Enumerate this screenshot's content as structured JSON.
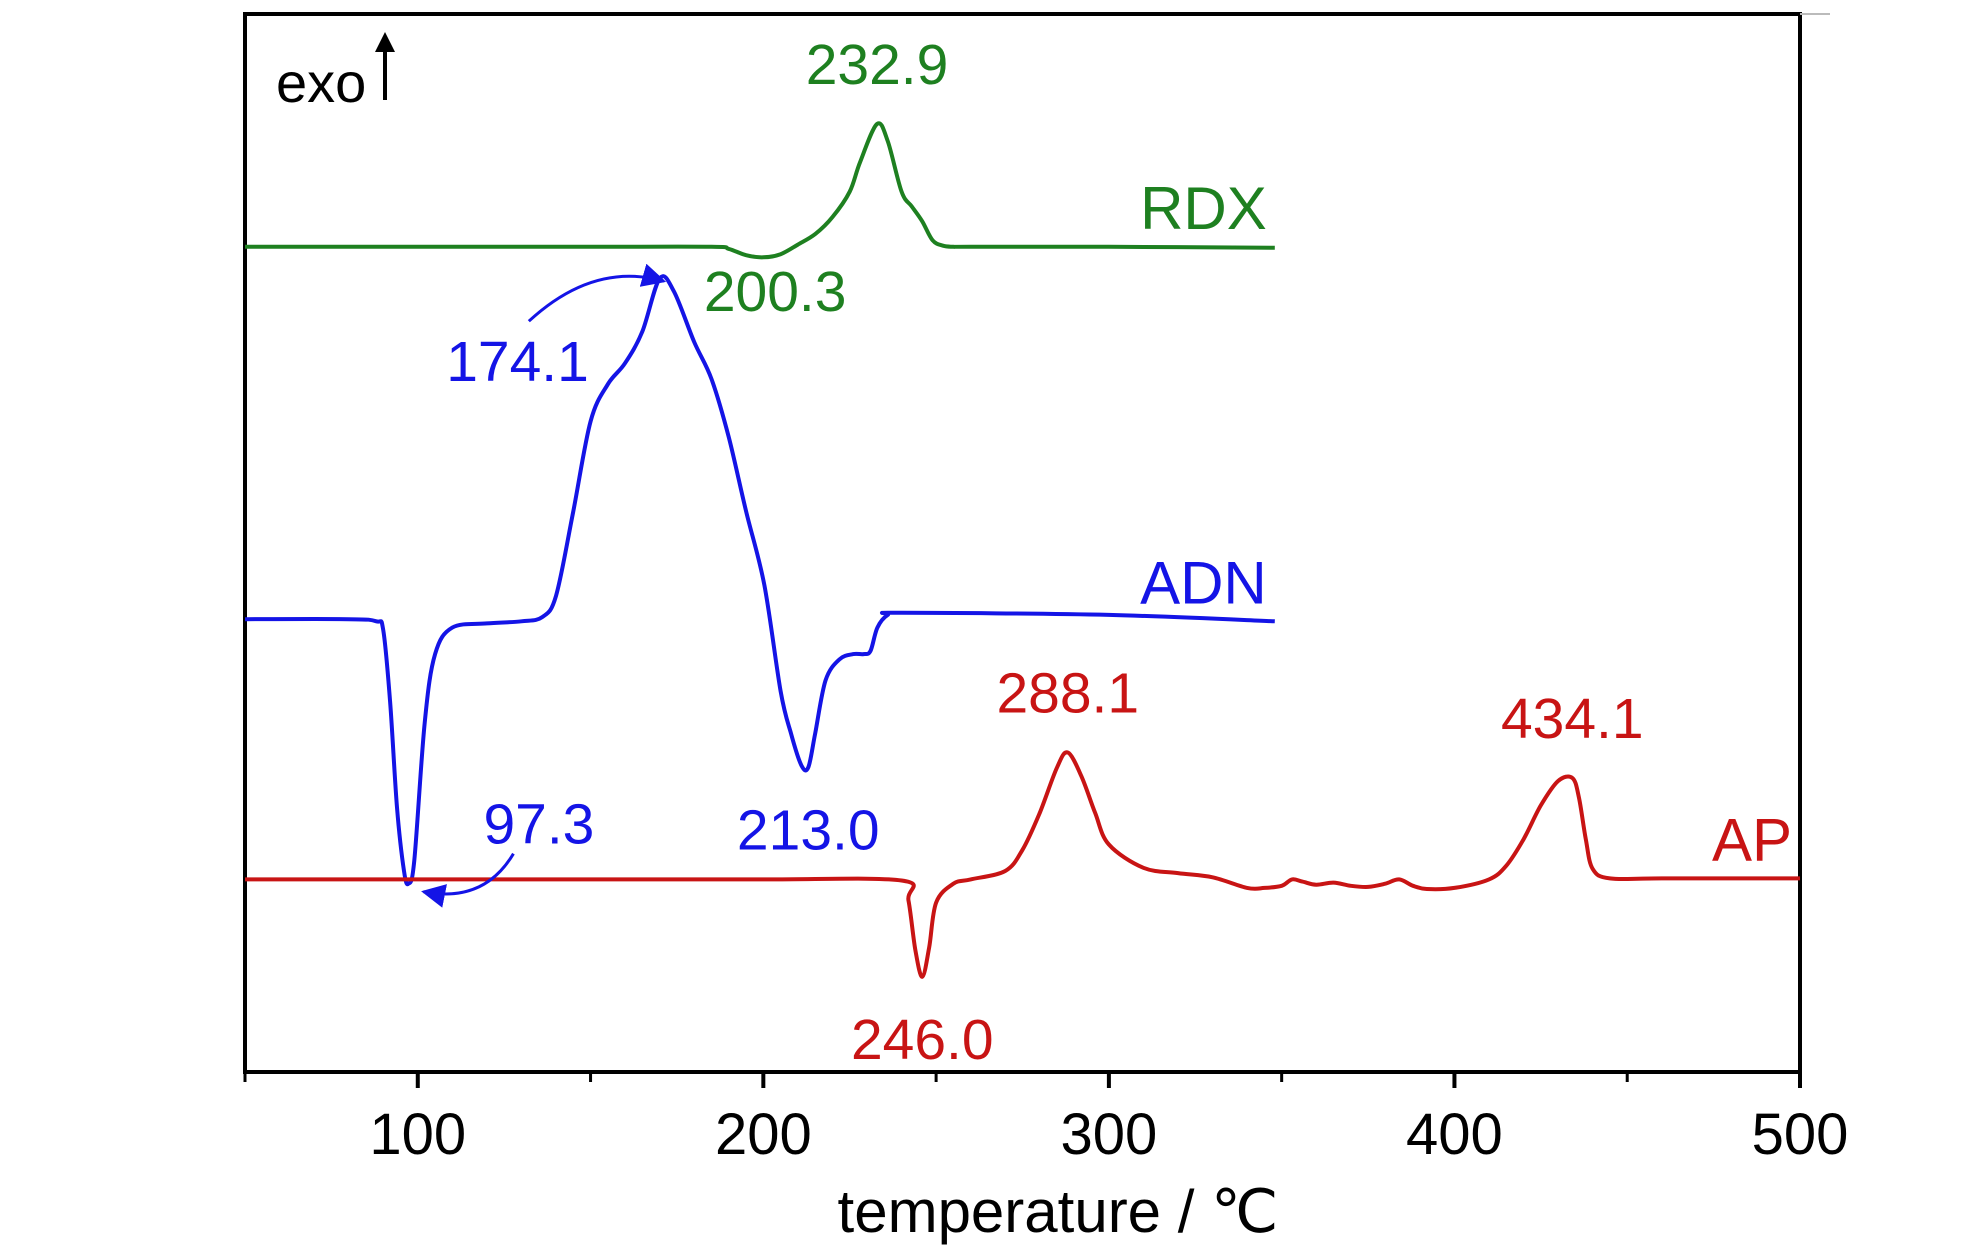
{
  "chart_data": {
    "type": "line",
    "xlabel": "temperature / ℃",
    "ylabel": "",
    "xlim": [
      50,
      500
    ],
    "ylim": [
      0,
      100
    ],
    "x_major_ticks": [
      100,
      200,
      300,
      400,
      500
    ],
    "x_minor_ticks": [
      50,
      150,
      250,
      350,
      450
    ],
    "tick_labels": [
      "100",
      "200",
      "300",
      "400",
      "500"
    ],
    "exo_label": "exo",
    "y_note": "relative heat-flow axis without printed ticks (exo up)",
    "series": [
      {
        "name": "RDX",
        "color": "#1e8020",
        "x": [
          50,
          100,
          150,
          185,
          190,
          195,
          200,
          205,
          210,
          215,
          220,
          225,
          228,
          232.9,
          236,
          240,
          243,
          246,
          249,
          252,
          255,
          260,
          300,
          348
        ],
        "y": [
          78.0,
          78.0,
          78.0,
          78.0,
          77.8,
          77.2,
          77.0,
          77.3,
          78.2,
          79.2,
          80.8,
          83.2,
          86.0,
          89.6,
          88.0,
          83.2,
          81.8,
          80.4,
          78.6,
          78.1,
          78.0,
          78.0,
          78.0,
          77.9
        ]
      },
      {
        "name": "ADN",
        "color": "#1414e6",
        "x": [
          50,
          80,
          88,
          90,
          92,
          94,
          96,
          97.3,
          99,
          102,
          105,
          110,
          120,
          130,
          136,
          140,
          145,
          150,
          155,
          160,
          165,
          170,
          174.1,
          180,
          185,
          190,
          195,
          200.3,
          205,
          208,
          211,
          213.0,
          215,
          218,
          222,
          226,
          229,
          231,
          233,
          236,
          240,
          300,
          348
        ],
        "y": [
          42.8,
          42.8,
          42.6,
          41.8,
          35.0,
          25.0,
          19.0,
          17.8,
          20.0,
          33.0,
          39.5,
          42.0,
          42.4,
          42.6,
          43.0,
          45.0,
          53.0,
          61.5,
          65.0,
          67.0,
          70.0,
          75.0,
          73.8,
          69.0,
          65.5,
          60.0,
          53.0,
          46.0,
          36.0,
          32.0,
          29.0,
          28.8,
          32.0,
          37.0,
          39.0,
          39.5,
          39.5,
          39.8,
          42.0,
          43.2,
          43.4,
          43.2,
          42.6
        ]
      },
      {
        "name": "AP",
        "color": "#c81414",
        "x": [
          50,
          100,
          150,
          200,
          240,
          242,
          244,
          246.0,
          248,
          250,
          255,
          260,
          270,
          275,
          280,
          285,
          288.1,
          292,
          296,
          300,
          310,
          320,
          330,
          340,
          345,
          350,
          353,
          356,
          360,
          365,
          370,
          375,
          380,
          384,
          388,
          392,
          400,
          410,
          415,
          420,
          425,
          430,
          434.1,
          436,
          438,
          440,
          445,
          460,
          500
        ],
        "y": [
          18.2,
          18.2,
          18.2,
          18.2,
          18.1,
          16.2,
          11.5,
          9.0,
          11.8,
          16.0,
          17.8,
          18.2,
          19.0,
          21.0,
          24.5,
          28.8,
          30.2,
          28.0,
          24.5,
          21.5,
          19.3,
          18.8,
          18.4,
          17.4,
          17.4,
          17.6,
          18.2,
          18.0,
          17.7,
          17.9,
          17.6,
          17.5,
          17.8,
          18.2,
          17.6,
          17.3,
          17.4,
          18.2,
          19.5,
          22.0,
          25.2,
          27.5,
          27.8,
          26.0,
          22.0,
          19.2,
          18.3,
          18.3,
          18.3
        ]
      }
    ],
    "series_labels": [
      {
        "text": "RDX",
        "x": 348,
        "y": 78,
        "color": "#1e8020"
      },
      {
        "text": "ADN",
        "x": 348,
        "y": 42.6,
        "color": "#1414e6"
      },
      {
        "text": "AP",
        "x": 500,
        "y": 18.3,
        "color": "#c81414"
      }
    ],
    "annotations": [
      {
        "text": "232.9",
        "x": 232.9,
        "y": 89.6,
        "color": "#1e8020",
        "position": "above"
      },
      {
        "text": "200.3",
        "x": 174.1,
        "y": 73.8,
        "color": "#1e8020",
        "position": "right",
        "arrow": false
      },
      {
        "text": "174.1",
        "x": 174.1,
        "y": 73.8,
        "color": "#1414e6",
        "position": "left-below",
        "arrow": true
      },
      {
        "text": "97.3",
        "x": 97.3,
        "y": 17.8,
        "color": "#1414e6",
        "position": "right-above",
        "arrow": true
      },
      {
        "text": "213.0",
        "x": 213.0,
        "y": 28.8,
        "color": "#1414e6",
        "position": "below"
      },
      {
        "text": "288.1",
        "x": 288.1,
        "y": 30.2,
        "color": "#c81414",
        "position": "above"
      },
      {
        "text": "246.0",
        "x": 246.0,
        "y": 9.0,
        "color": "#c81414",
        "position": "below"
      },
      {
        "text": "434.1",
        "x": 434.1,
        "y": 27.8,
        "color": "#c81414",
        "position": "above"
      }
    ],
    "grid": false,
    "legend": "none"
  }
}
